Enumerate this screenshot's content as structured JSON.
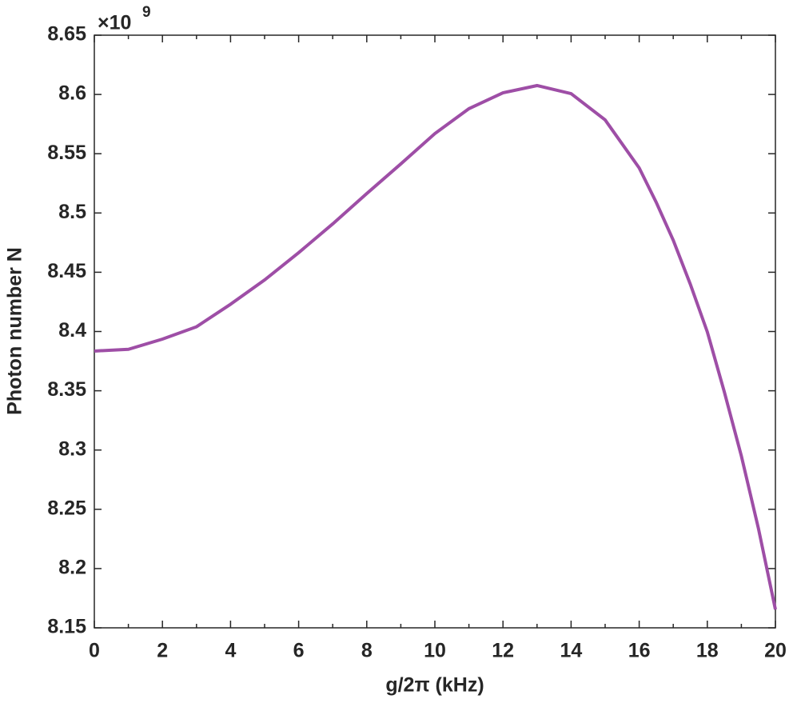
{
  "chart_data": {
    "type": "line",
    "x_label": "g/2π (kHz)",
    "y_label": "Photon number N",
    "y_multiplier_base": "×10",
    "y_multiplier_exponent": "9",
    "x": [
      0,
      1,
      2,
      3,
      4,
      5,
      6,
      7,
      8,
      9,
      10,
      11,
      12,
      13,
      14,
      15,
      16,
      16.5,
      17,
      17.5,
      18,
      18.5,
      19,
      19.5,
      20
    ],
    "series": [
      {
        "color": "#9e4ea6",
        "values": [
          8.3835,
          8.385,
          8.3936,
          8.404,
          8.423,
          8.4435,
          8.4665,
          8.4908,
          8.5164,
          8.5414,
          8.567,
          8.588,
          8.6014,
          8.6075,
          8.6007,
          8.5785,
          8.538,
          8.509,
          8.477,
          8.44,
          8.3997,
          8.349,
          8.295,
          8.234,
          8.1655
        ]
      }
    ],
    "xlim": [
      0,
      20
    ],
    "xticks": [
      0,
      2,
      4,
      6,
      8,
      10,
      12,
      14,
      16,
      18,
      20
    ],
    "ylim": [
      8.15,
      8.65
    ],
    "yticks": [
      8.15,
      8.2,
      8.25,
      8.3,
      8.35,
      8.4,
      8.45,
      8.5,
      8.55,
      8.6,
      8.65
    ]
  }
}
